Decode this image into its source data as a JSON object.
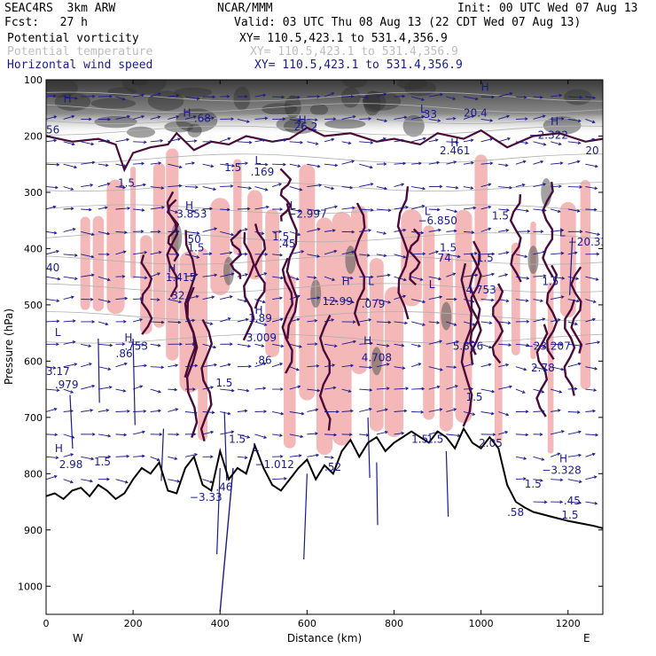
{
  "header": {
    "model": "SEAC4RS  3km ARW",
    "center": "NCAR/MMM",
    "init": "Init: 00 UTC Wed 07 Aug 13",
    "fcst": "Fcst:   27 h",
    "valid": "Valid: 03 UTC Thu 08 Aug 13 (22 CDT Wed 07 Aug 13)",
    "fields": [
      {
        "name": "Potential vorticity",
        "xy": "XY= 110.5,423.1 to 531.4,356.9",
        "color": "#000000"
      },
      {
        "name": "Potential temperature",
        "xy": "XY= 110.5,423.1 to 531.4,356.9",
        "color": "#bdbdbd"
      },
      {
        "name": "Horizontal wind speed",
        "xy": "XY= 110.5,423.1 to 531.4,356.9",
        "color": "#1a1a8c"
      }
    ]
  },
  "chart_data": {
    "type": "cross-section",
    "xlabel": "Distance (km)",
    "ylabel": "Pressure (hPa)",
    "xlim": [
      0,
      1280
    ],
    "ylim": [
      100,
      1050
    ],
    "y_inverted": true,
    "x_ticks": [
      0,
      200,
      400,
      600,
      800,
      1000,
      1200
    ],
    "y_ticks": [
      100,
      200,
      300,
      400,
      500,
      600,
      700,
      800,
      900,
      1000
    ],
    "left_end_label": "W",
    "right_end_label": "E",
    "colors": {
      "terrain": "#000000",
      "pv_contour": "#4a0a3a",
      "wind": "#1a1a8c",
      "pink_shade": "#f4b8b8",
      "theta": "#b0b0b0"
    },
    "terrain_profile": {
      "x": [
        0,
        20,
        40,
        60,
        80,
        100,
        120,
        140,
        160,
        180,
        200,
        220,
        240,
        260,
        280,
        300,
        320,
        340,
        360,
        380,
        400,
        420,
        440,
        460,
        480,
        500,
        520,
        540,
        560,
        580,
        600,
        620,
        640,
        660,
        680,
        700,
        720,
        740,
        760,
        780,
        800,
        820,
        840,
        860,
        880,
        900,
        920,
        940,
        960,
        980,
        1000,
        1020,
        1040,
        1060,
        1080,
        1100,
        1120,
        1140,
        1160,
        1180,
        1200,
        1220,
        1240,
        1260,
        1280
      ],
      "p": [
        840,
        835,
        845,
        830,
        825,
        840,
        820,
        830,
        845,
        835,
        810,
        790,
        800,
        780,
        830,
        835,
        790,
        770,
        820,
        830,
        760,
        810,
        790,
        800,
        750,
        790,
        820,
        830,
        810,
        790,
        775,
        810,
        785,
        800,
        760,
        740,
        770,
        745,
        735,
        760,
        745,
        735,
        725,
        735,
        745,
        725,
        735,
        755,
        720,
        745,
        755,
        735,
        755,
        820,
        850,
        860,
        868,
        872,
        876,
        880,
        884,
        887,
        890,
        893,
        897
      ]
    },
    "labels": [
      {
        "text": "H",
        "x": 40,
        "p": 140
      },
      {
        "text": "56",
        "x": 0,
        "p": 195
      },
      {
        "text": "H",
        "x": 315,
        "p": 165
      },
      {
        "text": ".68",
        "x": 340,
        "p": 175
      },
      {
        "text": "H",
        "x": 580,
        "p": 178
      },
      {
        "text": "26.2",
        "x": 570,
        "p": 190
      },
      {
        "text": "H",
        "x": 1000,
        "p": 120
      },
      {
        "text": "L",
        "x": 860,
        "p": 158
      },
      {
        "text": ".33",
        "x": 860,
        "p": 168
      },
      {
        "text": "20.4",
        "x": 960,
        "p": 165
      },
      {
        "text": "H",
        "x": 1160,
        "p": 180
      },
      {
        "text": "−2.322",
        "x": 1110,
        "p": 205
      },
      {
        "text": "H",
        "x": 930,
        "p": 218
      },
      {
        "text": "2.461",
        "x": 905,
        "p": 232
      },
      {
        "text": "1.5",
        "x": 410,
        "p": 262
      },
      {
        "text": "L",
        "x": 480,
        "p": 250
      },
      {
        "text": ".169",
        "x": 470,
        "p": 270
      },
      {
        "text": "1.5",
        "x": 165,
        "p": 290
      },
      {
        "text": "20",
        "x": 1240,
        "p": 232
      },
      {
        "text": "H",
        "x": 320,
        "p": 330
      },
      {
        "text": "3.853",
        "x": 300,
        "p": 345
      },
      {
        "text": "L",
        "x": 560,
        "p": 330
      },
      {
        "text": "−2.997",
        "x": 555,
        "p": 345
      },
      {
        "text": "L",
        "x": 870,
        "p": 340
      },
      {
        "text": "−6.850",
        "x": 855,
        "p": 357
      },
      {
        "text": "1.5",
        "x": 1025,
        "p": 348
      },
      {
        "text": "50",
        "x": 325,
        "p": 390
      },
      {
        "text": "1.5",
        "x": 325,
        "p": 405
      },
      {
        "text": "1.5",
        "x": 520,
        "p": 385
      },
      {
        "text": ".45",
        "x": 535,
        "p": 398
      },
      {
        "text": "L",
        "x": 1180,
        "p": 378
      },
      {
        "text": "−20.33",
        "x": 1200,
        "p": 395
      },
      {
        "text": "1.5",
        "x": 905,
        "p": 405
      },
      {
        "text": "74",
        "x": 900,
        "p": 423
      },
      {
        "text": "1.5",
        "x": 990,
        "p": 423
      },
      {
        "text": "40",
        "x": 0,
        "p": 440
      },
      {
        "text": "H",
        "x": 280,
        "p": 442
      },
      {
        "text": "1.415",
        "x": 275,
        "p": 458
      },
      {
        "text": ".32",
        "x": 280,
        "p": 490
      },
      {
        "text": "H",
        "x": 680,
        "p": 465
      },
      {
        "text": "L",
        "x": 740,
        "p": 465
      },
      {
        "text": "4.753",
        "x": 965,
        "p": 480
      },
      {
        "text": "L",
        "x": 880,
        "p": 470
      },
      {
        "text": "1.5",
        "x": 1140,
        "p": 465
      },
      {
        "text": "12.99",
        "x": 635,
        "p": 500
      },
      {
        "text": ".079",
        "x": 725,
        "p": 505
      },
      {
        "text": "H",
        "x": 480,
        "p": 516
      },
      {
        "text": "1.89",
        "x": 465,
        "p": 530
      },
      {
        "text": "L",
        "x": 20,
        "p": 555
      },
      {
        "text": "H",
        "x": 180,
        "p": 565
      },
      {
        "text": ".753",
        "x": 180,
        "p": 580
      },
      {
        "text": ".86",
        "x": 160,
        "p": 593
      },
      {
        "text": "3.009",
        "x": 460,
        "p": 565
      },
      {
        "text": "H",
        "x": 730,
        "p": 570
      },
      {
        "text": "5.826",
        "x": 935,
        "p": 580
      },
      {
        "text": "−23.207",
        "x": 1100,
        "p": 580
      },
      {
        "text": "4.708",
        "x": 725,
        "p": 600
      },
      {
        "text": ".86",
        "x": 480,
        "p": 605
      },
      {
        "text": "2.78",
        "x": 1115,
        "p": 618
      },
      {
        "text": "3.17",
        "x": 0,
        "p": 625
      },
      {
        "text": ".979",
        "x": 20,
        "p": 648
      },
      {
        "text": "1.5",
        "x": 390,
        "p": 645
      },
      {
        "text": "1.5",
        "x": 965,
        "p": 670
      },
      {
        "text": "1.5",
        "x": 875,
        "p": 745
      },
      {
        "text": "1.5",
        "x": 420,
        "p": 745
      },
      {
        "text": "1.5",
        "x": 840,
        "p": 745
      },
      {
        "text": "2.05",
        "x": 995,
        "p": 752
      },
      {
        "text": "H",
        "x": 20,
        "p": 762
      },
      {
        "text": "L",
        "x": 475,
        "p": 760
      },
      {
        "text": "H",
        "x": 1180,
        "p": 780
      },
      {
        "text": "2.98",
        "x": 30,
        "p": 790
      },
      {
        "text": "1.5",
        "x": 110,
        "p": 785
      },
      {
        "text": "−1.012",
        "x": 480,
        "p": 790
      },
      {
        "text": ".52",
        "x": 640,
        "p": 795
      },
      {
        "text": "−3.328",
        "x": 1140,
        "p": 800
      },
      {
        "text": "1.5",
        "x": 1100,
        "p": 825
      },
      {
        "text": ".46",
        "x": 390,
        "p": 830
      },
      {
        "text": "−3.33",
        "x": 330,
        "p": 848
      },
      {
        "text": ".45",
        "x": 1190,
        "p": 855
      },
      {
        "text": ".58",
        "x": 1060,
        "p": 875
      },
      {
        "text": "1.5",
        "x": 1185,
        "p": 880
      }
    ]
  }
}
